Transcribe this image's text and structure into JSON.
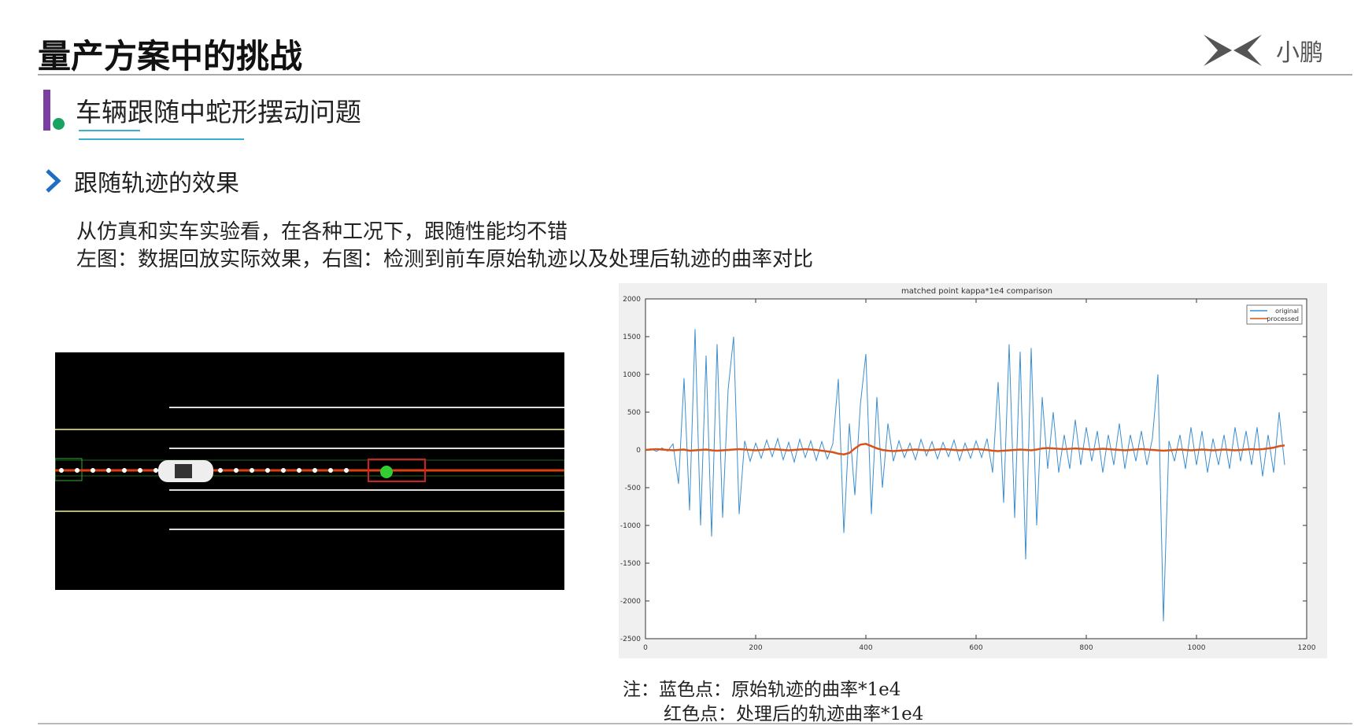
{
  "header": {
    "title": "量产方案中的挑战",
    "logo": "小鹏"
  },
  "section": {
    "title": "车辆跟随中蛇形摆动问题"
  },
  "bullet": {
    "title": "跟随轨迹的效果",
    "lines": [
      "从仿真和实车实验看，在各种工况下，跟随性能均不错",
      "左图：数据回放实际效果，右图：检测到前车原始轨迹以及处理后轨迹的曲率对比"
    ]
  },
  "notes": [
    "注：蓝色点：原始轨迹的曲率*1e4",
    "红色点：处理后的轨迹曲率*1e4"
  ],
  "chart_data": {
    "type": "line",
    "title": "matched point kappa*1e4 comparison",
    "x": [
      0,
      10,
      20,
      30,
      40,
      50,
      60,
      70,
      80,
      90,
      100,
      110,
      120,
      130,
      140,
      150,
      160,
      170,
      180,
      190,
      200,
      210,
      220,
      230,
      240,
      250,
      260,
      270,
      280,
      290,
      300,
      310,
      320,
      330,
      340,
      350,
      360,
      370,
      380,
      390,
      400,
      410,
      420,
      430,
      440,
      450,
      460,
      470,
      480,
      490,
      500,
      510,
      520,
      530,
      540,
      550,
      560,
      570,
      580,
      590,
      600,
      610,
      620,
      630,
      640,
      650,
      660,
      670,
      680,
      690,
      700,
      710,
      720,
      730,
      740,
      750,
      760,
      770,
      780,
      790,
      800,
      810,
      820,
      830,
      840,
      850,
      860,
      870,
      880,
      890,
      900,
      910,
      920,
      930,
      940,
      950,
      960,
      970,
      980,
      990,
      1000,
      1010,
      1020,
      1030,
      1040,
      1050,
      1060,
      1070,
      1080,
      1090,
      1100,
      1110,
      1120,
      1130,
      1140,
      1150,
      1160
    ],
    "series": [
      {
        "name": "original",
        "color": "#3b8ed0",
        "values": [
          0,
          15,
          -20,
          25,
          -15,
          80,
          -450,
          950,
          -800,
          1600,
          -1000,
          1250,
          -1150,
          1400,
          -900,
          800,
          1500,
          -850,
          120,
          -150,
          90,
          -110,
          130,
          -90,
          150,
          -130,
          100,
          -160,
          140,
          -100,
          120,
          -140,
          110,
          -120,
          80,
          940,
          -1100,
          350,
          -600,
          600,
          1270,
          -850,
          700,
          -500,
          350,
          -150,
          120,
          -100,
          90,
          -130,
          140,
          -80,
          110,
          -120,
          100,
          -90,
          130,
          -140,
          90,
          -110,
          120,
          -100,
          150,
          -300,
          900,
          -700,
          1400,
          -900,
          1300,
          -1450,
          1350,
          -1000,
          700,
          -250,
          500,
          -300,
          200,
          -250,
          400,
          -200,
          300,
          -150,
          250,
          -300,
          200,
          -200,
          350,
          -250,
          200,
          -150,
          250,
          -200,
          150,
          1000,
          -2270,
          120,
          -150,
          200,
          -250,
          300,
          -200,
          250,
          -300,
          150,
          -200,
          200,
          -250,
          300,
          -150,
          250,
          -200,
          300,
          -350,
          200,
          -300,
          500,
          -200
        ]
      },
      {
        "name": "processed",
        "color": "#d95319",
        "values": [
          0,
          5,
          10,
          5,
          0,
          -5,
          0,
          5,
          -10,
          -5,
          0,
          5,
          -5,
          -10,
          -5,
          0,
          5,
          10,
          5,
          0,
          -5,
          0,
          5,
          10,
          5,
          0,
          -5,
          0,
          5,
          10,
          5,
          0,
          -10,
          -20,
          -30,
          -50,
          -60,
          -40,
          20,
          70,
          80,
          50,
          20,
          0,
          -10,
          -15,
          -10,
          -5,
          0,
          5,
          0,
          -5,
          0,
          5,
          10,
          5,
          0,
          -5,
          0,
          5,
          10,
          5,
          0,
          -10,
          -15,
          -10,
          -5,
          0,
          5,
          0,
          -5,
          5,
          20,
          25,
          20,
          15,
          10,
          15,
          20,
          15,
          10,
          5,
          10,
          15,
          10,
          5,
          0,
          -5,
          0,
          5,
          10,
          5,
          0,
          -5,
          -10,
          -5,
          0,
          5,
          0,
          -5,
          0,
          5,
          0,
          -5,
          0,
          5,
          0,
          -5,
          0,
          5,
          10,
          5,
          10,
          20,
          30,
          50,
          60
        ]
      }
    ],
    "xlim": [
      0,
      1200
    ],
    "xticks": [
      0,
      200,
      400,
      600,
      800,
      1000,
      1200
    ],
    "ylim": [
      -2500,
      2000
    ],
    "yticks": [
      -2500,
      -2000,
      -1500,
      -1000,
      -500,
      0,
      500,
      1000,
      1500,
      2000
    ],
    "legend": "top-right"
  }
}
